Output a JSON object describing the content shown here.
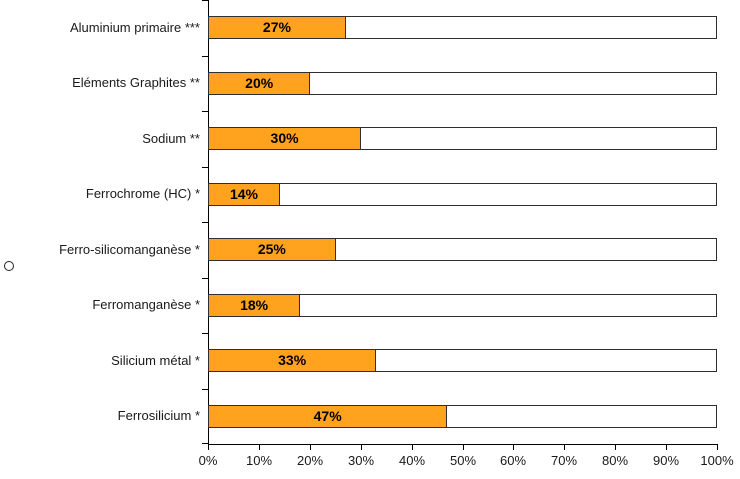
{
  "chart_data": {
    "type": "bar",
    "orientation": "horizontal",
    "title": "",
    "xlabel": "",
    "ylabel": "",
    "legend": "none",
    "grid": false,
    "categories": [
      "Aluminium primaire ***",
      "Eléments Graphites **",
      "Sodium **",
      "Ferrochrome (HC) *",
      "Ferro-silicomanganèse *",
      "Ferromanganèse *",
      "Silicium métal *",
      "Ferrosilicium *"
    ],
    "values": [
      27,
      20,
      30,
      14,
      25,
      18,
      33,
      47
    ],
    "value_labels": [
      "27%",
      "20%",
      "30%",
      "14%",
      "25%",
      "18%",
      "33%",
      "47%"
    ],
    "x_ticks": [
      "0%",
      "10%",
      "20%",
      "30%",
      "40%",
      "50%",
      "60%",
      "70%",
      "80%",
      "90%",
      "100%"
    ],
    "xlim": [
      0,
      100
    ],
    "bar_max_value": 100,
    "bar_color": "#FFA21E",
    "bar_track_color": "#FFFFFF",
    "bar_border_color": "#2F2F2F",
    "axis_color": "#000000",
    "text_color": "#1A1A1A",
    "value_label_color": "#000000"
  },
  "decorations": {
    "left_marker": "small-circle-outline"
  }
}
